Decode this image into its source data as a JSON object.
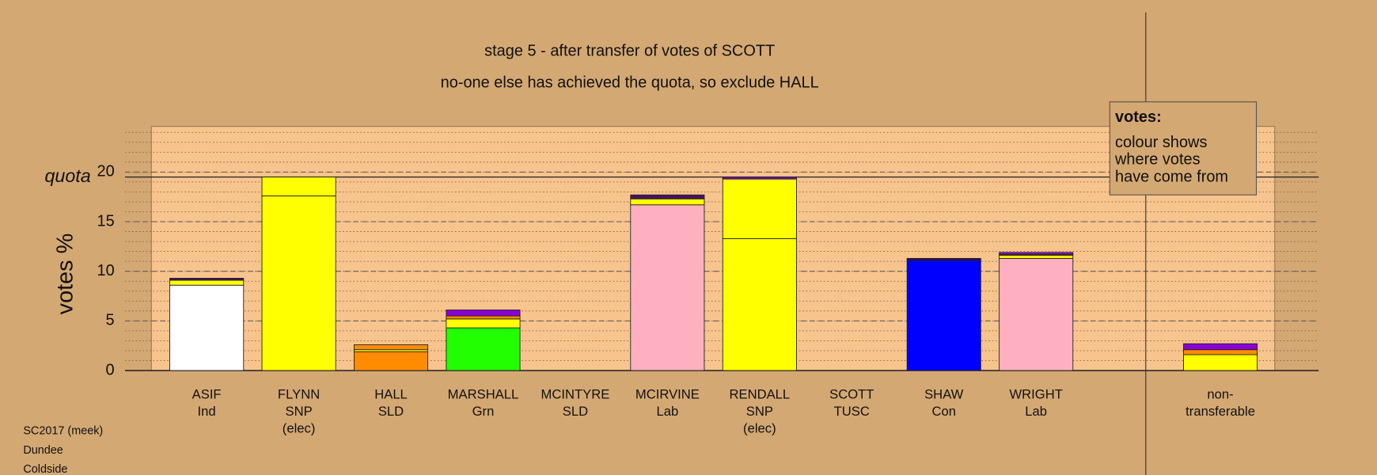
{
  "chart_data": {
    "type": "stacked-bar",
    "title": "stage 5 - after transfer of votes of SCOTT",
    "subtitle": "no-one else has achieved the quota, so exclude HALL",
    "y_label": "votes %",
    "quota_label": "quota",
    "quota": 19.5,
    "ylim": [
      0,
      24.6
    ],
    "yticks": [
      0,
      5,
      10,
      15,
      20
    ],
    "minor_grid_step": 1,
    "grid": true,
    "bars": [
      {
        "labels": [
          "ASIF",
          "Ind"
        ],
        "segments": [
          {
            "value": 8.6,
            "color": "#ffffff"
          },
          {
            "value": 0.5,
            "color": "#ffff00"
          },
          {
            "value": 0.2,
            "color": "#4b1060"
          }
        ]
      },
      {
        "labels": [
          "FLYNN",
          "SNP",
          "(elec)"
        ],
        "segments": [
          {
            "value": 17.6,
            "color": "#ffff00"
          },
          {
            "value": 1.9,
            "color": "#ffff00"
          }
        ]
      },
      {
        "labels": [
          "HALL",
          "SLD"
        ],
        "segments": [
          {
            "value": 1.9,
            "color": "#ff8c00"
          },
          {
            "value": 0.2,
            "color": "#ffff00"
          },
          {
            "value": 0.5,
            "color": "#ff8c00"
          }
        ]
      },
      {
        "labels": [
          "MARSHALL",
          "Grn"
        ],
        "segments": [
          {
            "value": 4.3,
            "color": "#22ff00"
          },
          {
            "value": 0.9,
            "color": "#ffff00"
          },
          {
            "value": 0.3,
            "color": "#ff8c00"
          },
          {
            "value": 0.6,
            "color": "#8a00d4"
          }
        ]
      },
      {
        "labels": [
          "MCINTYRE",
          "SLD"
        ],
        "segments": [
          {
            "value": 0,
            "color": "#ff8c00"
          }
        ]
      },
      {
        "labels": [
          "MCIRVINE",
          "Lab"
        ],
        "segments": [
          {
            "value": 16.7,
            "color": "#ffb0c0"
          },
          {
            "value": 0.6,
            "color": "#ffff00"
          },
          {
            "value": 0.4,
            "color": "#4b1060"
          }
        ]
      },
      {
        "labels": [
          "RENDALL",
          "SNP",
          "(elec)"
        ],
        "segments": [
          {
            "value": 13.3,
            "color": "#ffff00"
          },
          {
            "value": 6.0,
            "color": "#ffff00"
          },
          {
            "value": 0.2,
            "color": "#8a00d4"
          }
        ]
      },
      {
        "labels": [
          "SCOTT",
          "TUSC"
        ],
        "segments": [
          {
            "value": 0,
            "color": "#ff0000"
          }
        ]
      },
      {
        "labels": [
          "SHAW",
          "Con"
        ],
        "segments": [
          {
            "value": 11.1,
            "color": "#0000ff"
          },
          {
            "value": 0.2,
            "color": "#2a0a50"
          }
        ]
      },
      {
        "labels": [
          "WRIGHT",
          "Lab"
        ],
        "segments": [
          {
            "value": 11.3,
            "color": "#ffb0c0"
          },
          {
            "value": 0.3,
            "color": "#ffff00"
          },
          {
            "value": 0.1,
            "color": "#ff8c00"
          },
          {
            "value": 0.2,
            "color": "#8a00d4"
          }
        ]
      },
      {
        "labels": [
          "non-",
          "transferable"
        ],
        "segments": [
          {
            "value": 1.6,
            "color": "#ffff00"
          },
          {
            "value": 0.5,
            "color": "#ff8c00"
          },
          {
            "value": 0.6,
            "color": "#8a00d4"
          }
        ]
      }
    ],
    "legend": {
      "title": "votes:",
      "lines": [
        "colour shows",
        "where votes",
        "have come from"
      ]
    },
    "footer": [
      "SC2017 (meek)",
      "Dundee",
      "Coldside"
    ]
  }
}
